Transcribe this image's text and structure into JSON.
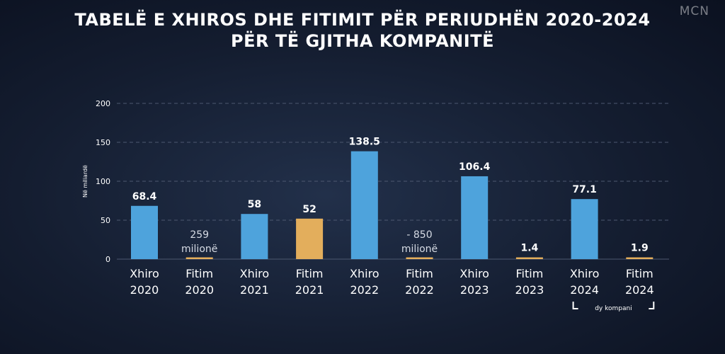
{
  "title_line1": "TABELË E XHIROS DHE FITIMIT PËR PERIUDHËN 2020-2024",
  "title_line2": "PËR TË GJITHA KOMPANITË",
  "logo_text": "MCN",
  "colors": {
    "xhiro": "#4ea3dc",
    "fitim": "#e3ae5c",
    "grid": "#4d5870"
  },
  "chart_data": {
    "type": "bar",
    "ylabel": "Në miliardë",
    "ylim": [
      0,
      200
    ],
    "yticks": [
      0,
      50,
      100,
      150,
      200
    ],
    "grid": true,
    "bars": [
      {
        "cat1": "Xhiro",
        "cat2": "2020",
        "value": 68.4,
        "label": "68.4",
        "series": "xhiro"
      },
      {
        "cat1": "Fitim",
        "cat2": "2020",
        "value": 0.259,
        "label": "259",
        "label2": "milionë",
        "series": "fitim"
      },
      {
        "cat1": "Xhiro",
        "cat2": "2021",
        "value": 58,
        "label": "58",
        "series": "xhiro"
      },
      {
        "cat1": "Fitim",
        "cat2": "2021",
        "value": 52,
        "label": "52",
        "series": "fitim"
      },
      {
        "cat1": "Xhiro",
        "cat2": "2022",
        "value": 138.5,
        "label": "138.5",
        "series": "xhiro"
      },
      {
        "cat1": "Fitim",
        "cat2": "2022",
        "value": -0.85,
        "label": "- 850",
        "label2": "milionë",
        "series": "fitim"
      },
      {
        "cat1": "Xhiro",
        "cat2": "2023",
        "value": 106.4,
        "label": "106.4",
        "series": "xhiro"
      },
      {
        "cat1": "Fitim",
        "cat2": "2023",
        "value": 1.4,
        "label": "1.4",
        "series": "fitim"
      },
      {
        "cat1": "Xhiro",
        "cat2": "2024",
        "value": 77.1,
        "label": "77.1",
        "series": "xhiro"
      },
      {
        "cat1": "Fitim",
        "cat2": "2024",
        "value": 1.9,
        "label": "1.9",
        "series": "fitim"
      }
    ],
    "footnote": "dy kompani"
  }
}
